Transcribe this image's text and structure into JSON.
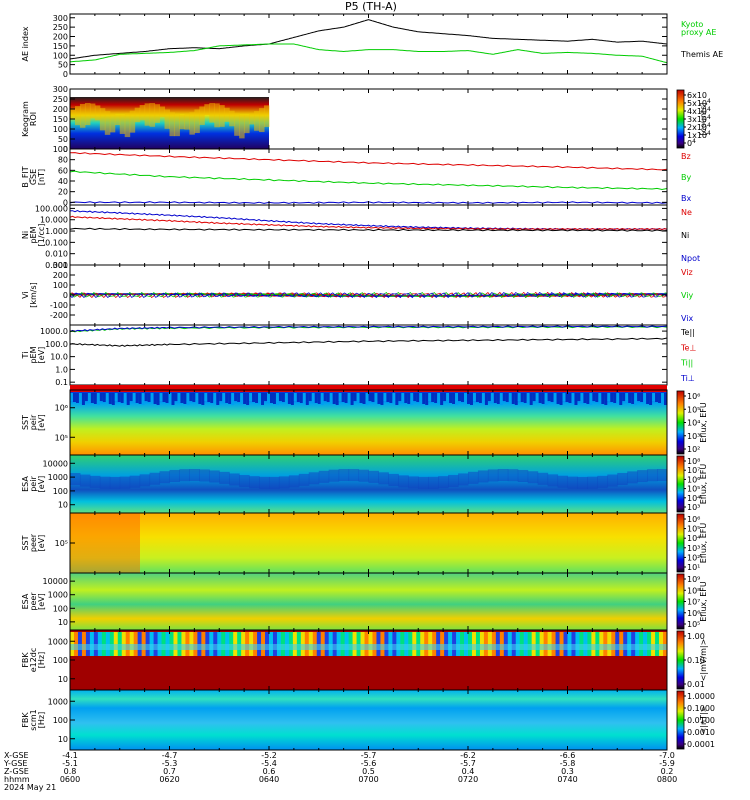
{
  "title": "P5  (TH-A)",
  "chart_data": [
    {
      "id": "ae",
      "type": "line",
      "ylabel": "AE index",
      "ylim": [
        0,
        320
      ],
      "yticks": [
        0,
        50,
        100,
        150,
        200,
        250,
        300
      ],
      "yticklabels": [
        "0",
        "50",
        "100",
        "150",
        "200",
        "250",
        "300"
      ],
      "legend": [
        {
          "label": "Kyoto",
          "color": "#00cc00"
        },
        {
          "label": "proxy AE",
          "color": "#00cc00"
        },
        {
          "label": "Themis AE",
          "color": "#000000"
        }
      ],
      "series": [
        {
          "color": "#000000",
          "x": [
            0,
            5,
            10,
            15,
            20,
            25,
            30,
            35,
            40,
            45,
            50,
            55,
            60,
            65,
            70,
            75,
            80,
            85,
            90,
            95,
            100,
            105,
            110,
            115,
            120
          ],
          "values": [
            80,
            100,
            110,
            120,
            135,
            140,
            135,
            150,
            160,
            195,
            230,
            250,
            290,
            250,
            225,
            215,
            205,
            190,
            185,
            180,
            175,
            185,
            170,
            175,
            160
          ]
        },
        {
          "color": "#00cc00",
          "x": [
            0,
            5,
            10,
            15,
            20,
            25,
            30,
            35,
            40,
            45,
            50,
            55,
            60,
            65,
            70,
            75,
            80,
            85,
            90,
            95,
            100,
            105,
            110,
            115,
            120
          ],
          "values": [
            65,
            75,
            105,
            110,
            115,
            125,
            150,
            155,
            160,
            160,
            130,
            120,
            130,
            130,
            120,
            120,
            125,
            105,
            130,
            110,
            115,
            110,
            100,
            95,
            60
          ]
        }
      ]
    },
    {
      "id": "keogram",
      "type": "heatmap",
      "ylabel": "Keogram",
      "ylabel2": "ROI",
      "ylim": [
        0,
        300
      ],
      "yticks": [
        0,
        50,
        100,
        150,
        200,
        250,
        300
      ],
      "yticklabels": [
        "0",
        "50",
        "100",
        "150",
        "200",
        "250",
        "300"
      ],
      "colorbar_label": "[counts]",
      "colorbar_ticks": [
        "0",
        "1x10",
        "2x10",
        "3x10",
        "4x10",
        "5x10",
        "6x10"
      ],
      "colorbar_exp": "4",
      "data_extent_x": [
        0,
        40
      ],
      "data_extent_y": [
        0,
        260
      ]
    },
    {
      "id": "bfield",
      "type": "line",
      "ylabel": "B_FIT",
      "ylabel2": "GSE",
      "ylabel3": "[nT]",
      "ylim": [
        -5,
        100
      ],
      "yticks": [
        0,
        20,
        40,
        60,
        80,
        100
      ],
      "yticklabels": [
        "0",
        "20",
        "40",
        "60",
        "80",
        "100"
      ],
      "legend": [
        {
          "label": "Bz",
          "color": "#dd0000"
        },
        {
          "label": "By",
          "color": "#00cc00"
        },
        {
          "label": "Bx",
          "color": "#0000cc"
        }
      ],
      "series": [
        {
          "color": "#dd0000",
          "x": [
            0,
            20,
            40,
            60,
            80,
            100,
            120
          ],
          "values": [
            93,
            86,
            80,
            74,
            70,
            66,
            61
          ]
        },
        {
          "color": "#00cc00",
          "x": [
            0,
            20,
            40,
            60,
            80,
            100,
            120
          ],
          "values": [
            58,
            48,
            42,
            36,
            32,
            28,
            25
          ]
        },
        {
          "color": "#0000cc",
          "x": [
            0,
            20,
            40,
            60,
            80,
            100,
            120
          ],
          "values": [
            0,
            0,
            -1,
            0,
            -1,
            0,
            -1
          ]
        }
      ]
    },
    {
      "id": "ni",
      "type": "line",
      "log": true,
      "ylabel": "Ni",
      "ylabel2": "pEM",
      "ylabel3": "[1/cc]",
      "ylim": [
        0.001,
        200
      ],
      "yticks": [
        0.001,
        0.01,
        0.1,
        1,
        10,
        100
      ],
      "yticklabels": [
        "0.001",
        "0.010",
        "0.100",
        "1.000",
        "10.000",
        "100.000"
      ],
      "legend": [
        {
          "label": "Ne",
          "color": "#dd0000"
        },
        {
          "label": "Ni",
          "color": "#000000"
        },
        {
          "label": "Npot",
          "color": "#0000cc"
        }
      ],
      "series": [
        {
          "color": "#0000cc",
          "x": [
            0,
            10,
            20,
            30,
            40,
            50,
            60,
            70,
            80,
            90,
            100,
            110,
            120
          ],
          "values": [
            60,
            40,
            25,
            15,
            8,
            4.5,
            3,
            2.2,
            1.8,
            1.6,
            1.5,
            1.5,
            1.5
          ]
        },
        {
          "color": "#dd0000",
          "x": [
            0,
            10,
            20,
            30,
            40,
            50,
            60,
            70,
            80,
            90,
            100,
            110,
            120
          ],
          "values": [
            18,
            12,
            8,
            5,
            3.5,
            2.5,
            2,
            1.7,
            1.6,
            1.5,
            1.5,
            1.5,
            1.5
          ]
        },
        {
          "color": "#000000",
          "x": [
            0,
            20,
            40,
            60,
            80,
            100,
            120
          ],
          "values": [
            1.6,
            1.4,
            1.3,
            1.25,
            1.2,
            1.15,
            1.1
          ]
        }
      ]
    },
    {
      "id": "vi",
      "type": "line",
      "ylabel": "Vi",
      "ylabel2": "[km/s]",
      "ylim": [
        -300,
        300
      ],
      "yticks": [
        -200,
        -100,
        0,
        100,
        200,
        300
      ],
      "yticklabels": [
        "-200",
        "-100",
        "0",
        "100",
        "200",
        "300"
      ],
      "legend": [
        {
          "label": "Viz",
          "color": "#dd0000"
        },
        {
          "label": "Viy",
          "color": "#00cc00"
        },
        {
          "label": "Vix",
          "color": "#0000cc"
        }
      ],
      "series": [
        {
          "color": "#dd0000",
          "x": [
            0,
            120
          ],
          "values": [
            0,
            0
          ]
        },
        {
          "color": "#00cc00",
          "x": [
            0,
            120
          ],
          "values": [
            0,
            0
          ]
        },
        {
          "color": "#0000cc",
          "x": [
            0,
            120
          ],
          "values": [
            0,
            0
          ]
        }
      ]
    },
    {
      "id": "ti",
      "type": "line",
      "log": true,
      "ylabel": "Ti",
      "ylabel2": "pEM",
      "ylabel3": "[eV]",
      "ylim": [
        0.06,
        3000
      ],
      "yticks": [
        0.1,
        1,
        10,
        100,
        1000
      ],
      "yticklabels": [
        "0.1",
        "1.0",
        "10.0",
        "100.0",
        "1000.0"
      ],
      "legend": [
        {
          "label": "Te||",
          "color": "#000000"
        },
        {
          "label": "Te⊥",
          "color": "#dd0000"
        },
        {
          "label": "Ti||",
          "color": "#00cc00"
        },
        {
          "label": "Ti⊥",
          "color": "#0000cc"
        }
      ],
      "series": [
        {
          "color": "#00cc00",
          "x": [
            0,
            10,
            20,
            40,
            60,
            80,
            100,
            120
          ],
          "values": [
            900,
            1500,
            1700,
            1900,
            2000,
            2000,
            2100,
            2100
          ]
        },
        {
          "color": "#0000cc",
          "x": [
            0,
            10,
            20,
            40,
            60,
            80,
            100,
            120
          ],
          "values": [
            1000,
            1600,
            1900,
            2100,
            2200,
            2200,
            2300,
            2300
          ]
        },
        {
          "color": "#000000",
          "x": [
            0,
            10,
            20,
            40,
            60,
            80,
            100,
            120
          ],
          "values": [
            100,
            70,
            90,
            120,
            160,
            190,
            220,
            260
          ]
        }
      ]
    },
    {
      "id": "sst_peir",
      "type": "heatmap",
      "ylabel": "SST",
      "ylabel2": "peir",
      "ylabel3": "[eV]",
      "yticklabels": [
        "10⁶",
        "10⁵"
      ],
      "colorbar_label": "Eflux, EFU",
      "colorbar_ticks": [
        "10⁶",
        "10⁵",
        "10⁴",
        "10³",
        "10²"
      ]
    },
    {
      "id": "esa_peir",
      "type": "heatmap",
      "ylabel": "ESA",
      "ylabel2": "peir",
      "ylabel3": "[eV]",
      "yticklabels": [
        "10000",
        "1000",
        "100",
        "10"
      ],
      "colorbar_label": "Eflux, EFU",
      "colorbar_ticks": [
        "10⁸",
        "10⁷",
        "10⁶",
        "10⁵",
        "10⁴",
        "10³"
      ]
    },
    {
      "id": "sst_peer",
      "type": "heatmap",
      "ylabel": "SST",
      "ylabel2": "peer",
      "ylabel3": "[eV]",
      "yticklabels": [
        "10⁵"
      ],
      "colorbar_label": "Eflux, EFU",
      "colorbar_ticks": [
        "10⁶",
        "10⁵",
        "10⁴",
        "10³",
        "10²",
        "10¹"
      ]
    },
    {
      "id": "esa_peer",
      "type": "heatmap",
      "ylabel": "ESA",
      "ylabel2": "peer",
      "ylabel3": "[eV]",
      "yticklabels": [
        "10000",
        "1000",
        "100",
        "10"
      ],
      "colorbar_label": "Eflux, EFU",
      "colorbar_ticks": [
        "10⁹",
        "10⁸",
        "10⁷",
        "10⁶",
        "10⁵"
      ]
    },
    {
      "id": "fbk_e",
      "type": "heatmap",
      "ylabel": "FBK",
      "ylabel2": "e12dc",
      "ylabel3": "[Hz]",
      "yticklabels": [
        "1000",
        "100",
        "10"
      ],
      "colorbar_label": "<|mV/m|>",
      "colorbar_ticks": [
        "1.00",
        "0.10",
        "0.01"
      ]
    },
    {
      "id": "fbk_b",
      "type": "heatmap",
      "ylabel": "FBK",
      "ylabel2": "scm1",
      "ylabel3": "[Hz]",
      "yticklabels": [
        "1000",
        "100",
        "10"
      ],
      "colorbar_label": "<|nT|>",
      "colorbar_ticks": [
        "1.0000",
        "0.1000",
        "0.0100",
        "0.0010",
        "0.0001"
      ]
    }
  ],
  "time_axis": {
    "labels": [
      "hhmm",
      "X-GSE",
      "Y-GSE",
      "Z-GSE"
    ],
    "ticks": [
      {
        "time": "0600",
        "x": "-4.1",
        "y": "-5.1",
        "z": "0.8"
      },
      {
        "time": "0620",
        "x": "-4.7",
        "y": "-5.3",
        "z": "0.7"
      },
      {
        "time": "0640",
        "x": "-5.2",
        "y": "-5.4",
        "z": "0.6"
      },
      {
        "time": "0700",
        "x": "-5.7",
        "y": "-5.6",
        "z": "0.5"
      },
      {
        "time": "0720",
        "x": "-6.2",
        "y": "-5.7",
        "z": "0.4"
      },
      {
        "time": "0740",
        "x": "-6.6",
        "y": "-5.8",
        "z": "0.3"
      },
      {
        "time": "0800",
        "x": "-7.0",
        "y": "-5.9",
        "z": "0.2"
      }
    ],
    "date": "2024 May 21"
  }
}
